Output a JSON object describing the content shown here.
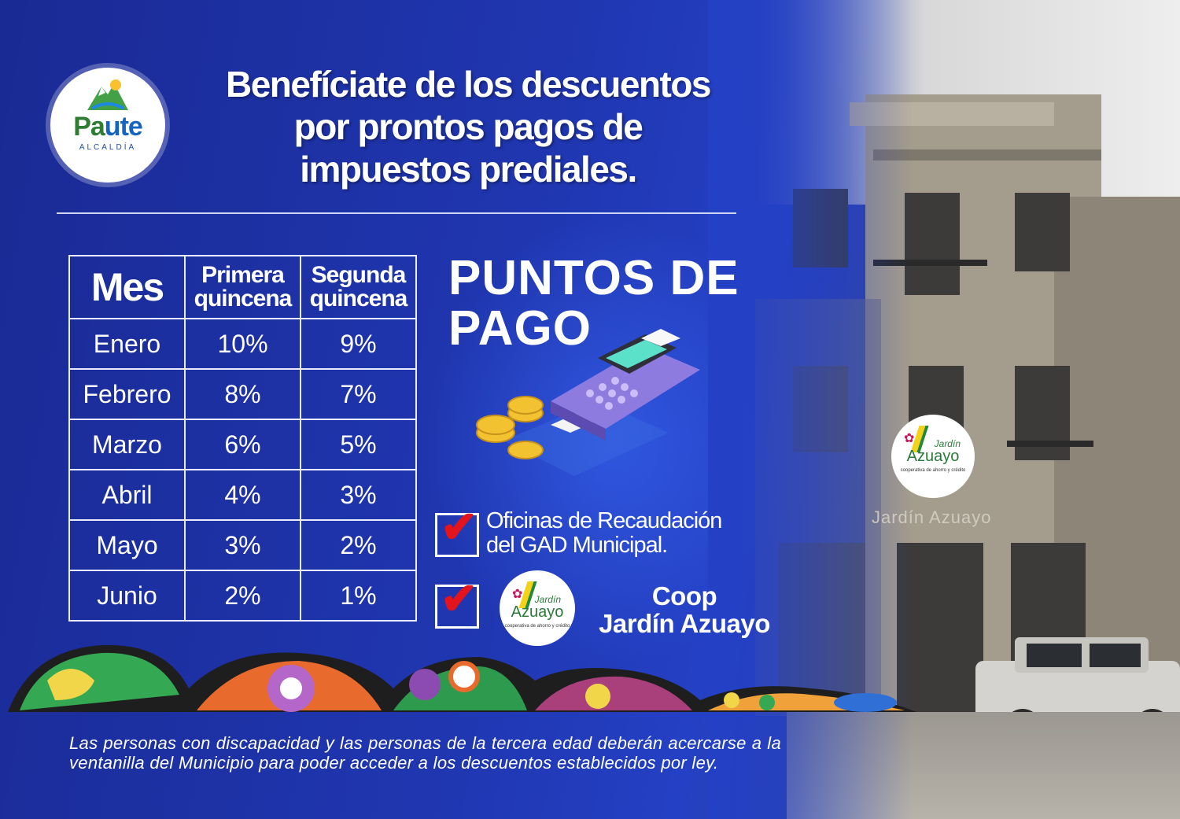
{
  "logo": {
    "name_part1": "Pa",
    "name_part2": "ute",
    "subtitle": "ALCALDÍA"
  },
  "headline": [
    "Benefíciate de los descuentos",
    "por prontos pagos de",
    "impuestos prediales."
  ],
  "table": {
    "headers": {
      "mes": "Mes",
      "primera": [
        "Primera",
        "quincena"
      ],
      "segunda": [
        "Segunda",
        "quincena"
      ]
    },
    "rows": [
      {
        "mes": "Enero",
        "primera": "10%",
        "segunda": "9%"
      },
      {
        "mes": "Febrero",
        "primera": "8%",
        "segunda": "7%"
      },
      {
        "mes": "Marzo",
        "primera": "6%",
        "segunda": "5%"
      },
      {
        "mes": "Abril",
        "primera": "4%",
        "segunda": "3%"
      },
      {
        "mes": "Mayo",
        "primera": "3%",
        "segunda": "2%"
      },
      {
        "mes": "Junio",
        "primera": "2%",
        "segunda": "1%"
      }
    ]
  },
  "puntos": {
    "line1": "PUNTOS DE",
    "line2": "PAGO"
  },
  "options": {
    "oficinas": [
      "Oficinas de Recaudación",
      "del GAD Municipal."
    ],
    "coop": [
      "Coop",
      "Jardín Azuayo"
    ]
  },
  "jardin_logo": {
    "top": "Jardín",
    "main": "Azuayo",
    "sub": "cooperativa de ahorro y crédito"
  },
  "building_sign": "Jardín Azuayo",
  "footnote": "Las personas con discapacidad y las personas de la tercera edad deberán acercarse a la ventanilla del Municipio para poder acceder a los descuentos establecidos por ley.",
  "colors": {
    "background": "#2037b2",
    "check": "#e3141b",
    "text": "#ffffff"
  }
}
